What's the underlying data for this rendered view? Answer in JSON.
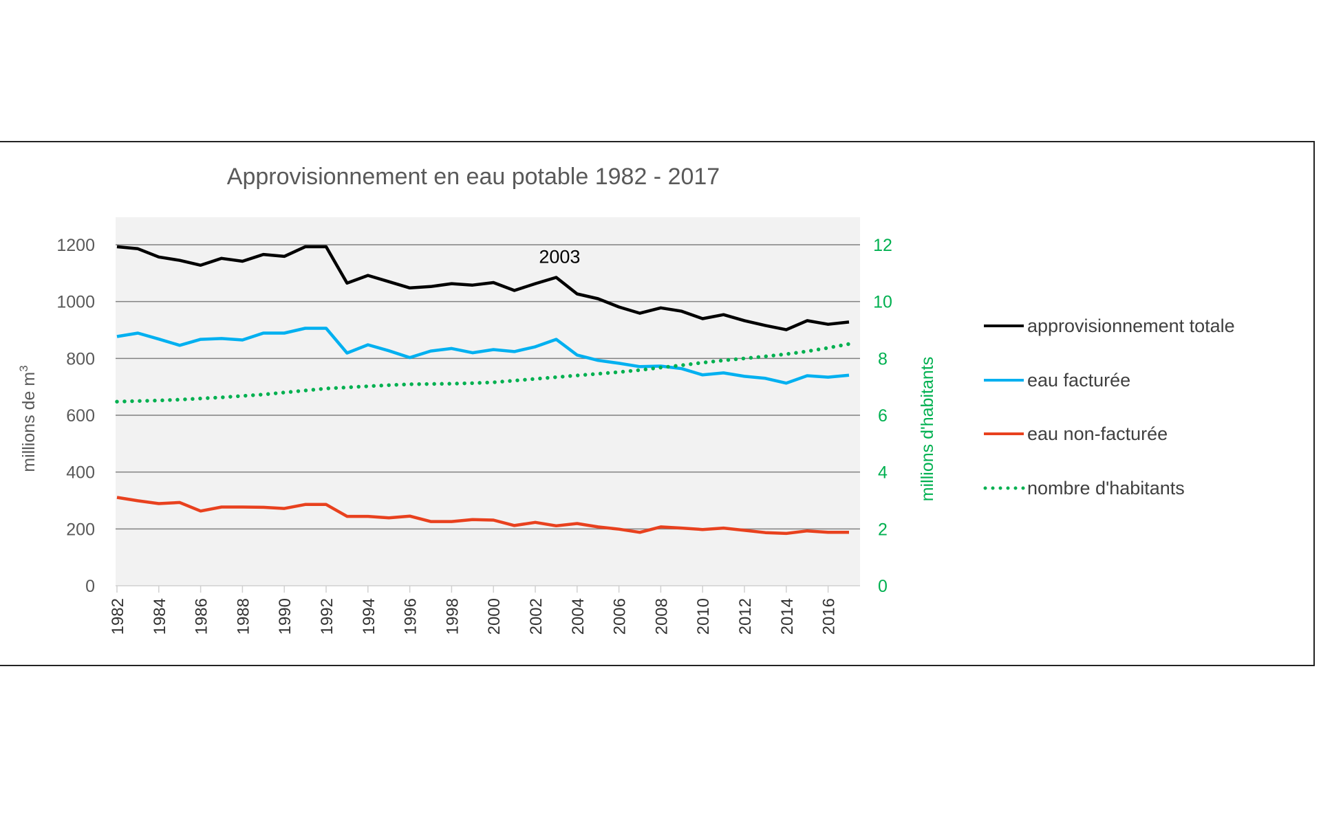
{
  "chart_data": {
    "type": "line",
    "title": "Approvisionnement en eau potable 1982 - 2017",
    "xlabel": "",
    "ylabel": "millions de m³",
    "ylabel_base": "millions de m",
    "ylabel_sup": "3",
    "y2label": "millions d'habitants",
    "ylim": [
      0,
      1200
    ],
    "y2lim": [
      0,
      12
    ],
    "yticks": [
      "0",
      "200",
      "400",
      "600",
      "800",
      "1000",
      "1200"
    ],
    "y2ticks": [
      "0",
      "2",
      "4",
      "6",
      "8",
      "10",
      "12"
    ],
    "grid": true,
    "legend_position": "right",
    "x": [
      1982,
      1983,
      1984,
      1985,
      1986,
      1987,
      1988,
      1989,
      1990,
      1991,
      1992,
      1993,
      1994,
      1995,
      1996,
      1997,
      1998,
      1999,
      2000,
      2001,
      2002,
      2003,
      2004,
      2005,
      2006,
      2007,
      2008,
      2009,
      2010,
      2011,
      2012,
      2013,
      2014,
      2015,
      2016,
      2017
    ],
    "xtick_labels": [
      "1982",
      "1984",
      "1986",
      "1988",
      "1990",
      "1992",
      "1994",
      "1996",
      "1998",
      "2000",
      "2002",
      "2004",
      "2006",
      "2008",
      "2010",
      "2012",
      "2014",
      "2016"
    ],
    "series": [
      {
        "name": "approvisionnement totale",
        "axis": "left",
        "color": "#000000",
        "style": "solid",
        "values": [
          1193,
          1186,
          1157,
          1145,
          1128,
          1152,
          1142,
          1166,
          1159,
          1193,
          1193,
          1065,
          1092,
          1070,
          1048,
          1053,
          1063,
          1058,
          1067,
          1039,
          1063,
          1085,
          1027,
          1010,
          981,
          959,
          978,
          966,
          940,
          954,
          933,
          916,
          901,
          933,
          920,
          928
        ]
      },
      {
        "name": "eau facturée",
        "axis": "left",
        "color": "#00b0f0",
        "style": "solid",
        "values": [
          877,
          889,
          868,
          846,
          867,
          870,
          865,
          889,
          889,
          906,
          906,
          819,
          848,
          827,
          803,
          826,
          835,
          820,
          831,
          824,
          841,
          867,
          812,
          793,
          783,
          771,
          773,
          764,
          742,
          749,
          737,
          730,
          713,
          739,
          734,
          741
        ]
      },
      {
        "name": "eau non-facturée",
        "axis": "left",
        "color": "#e8411e",
        "style": "solid",
        "values": [
          311,
          299,
          289,
          293,
          263,
          277,
          277,
          276,
          272,
          286,
          286,
          244,
          244,
          239,
          245,
          226,
          226,
          233,
          231,
          212,
          223,
          211,
          219,
          207,
          199,
          188,
          207,
          203,
          198,
          203,
          195,
          187,
          184,
          193,
          188,
          188
        ]
      },
      {
        "name": "nombre d'habitants",
        "axis": "right",
        "color": "#00b050",
        "style": "dotted",
        "values": [
          6.48,
          6.5,
          6.52,
          6.55,
          6.59,
          6.63,
          6.68,
          6.73,
          6.8,
          6.87,
          6.94,
          6.98,
          7.02,
          7.06,
          7.09,
          7.1,
          7.11,
          7.13,
          7.16,
          7.22,
          7.28,
          7.34,
          7.4,
          7.46,
          7.52,
          7.59,
          7.68,
          7.76,
          7.85,
          7.93,
          8.0,
          8.07,
          8.15,
          8.25,
          8.37,
          8.51
        ]
      }
    ],
    "annotations": [
      {
        "text": "2003",
        "x": 2003,
        "y": 1160
      }
    ]
  }
}
